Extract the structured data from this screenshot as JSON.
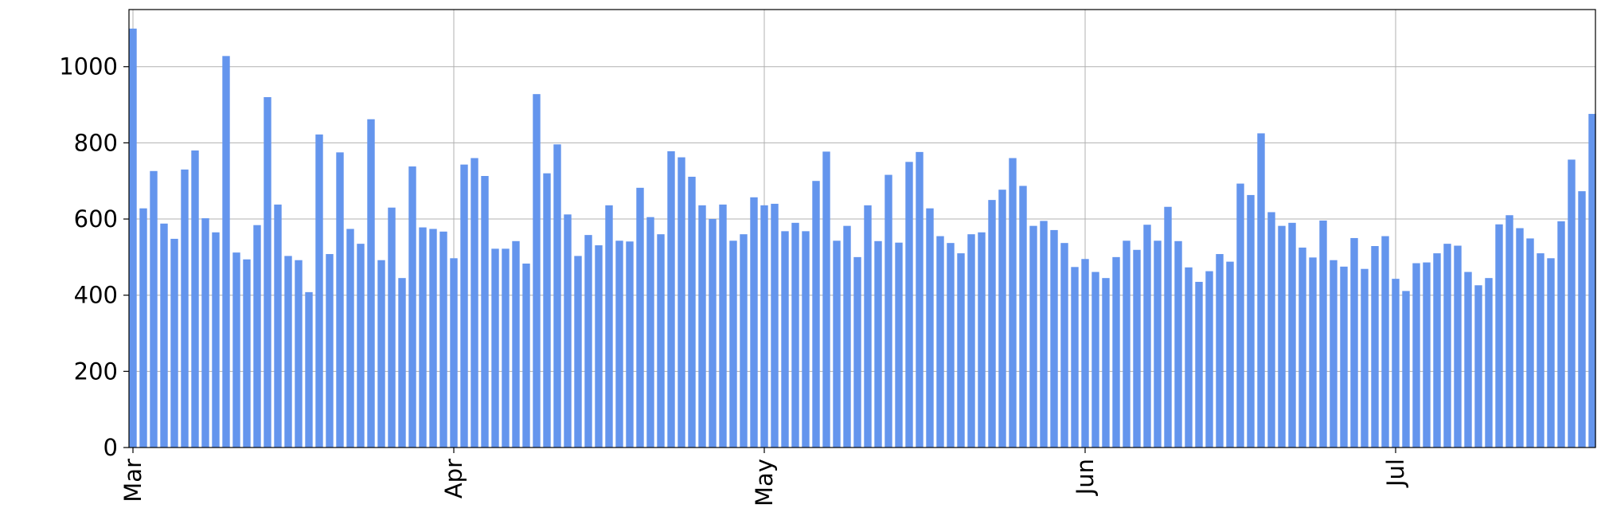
{
  "chart_data": {
    "type": "bar",
    "title": "",
    "xlabel": "",
    "ylabel": "",
    "x_start": "2016-03-01",
    "x_end": "2016-07-21",
    "x_ticks": [
      "Mar",
      "Apr",
      "May",
      "Jun",
      "Jul"
    ],
    "y_ticks": [
      0,
      200,
      400,
      600,
      800,
      1000
    ],
    "ylim": [
      0,
      1150
    ],
    "grid": true,
    "legend": "none",
    "bar_color": "#6495ED",
    "values": [
      1100,
      628,
      726,
      588,
      548,
      730,
      780,
      602,
      565,
      1028,
      512,
      494,
      584,
      920,
      638,
      503,
      492,
      408,
      822,
      508,
      775,
      574,
      535,
      862,
      492,
      630,
      445,
      738,
      578,
      574,
      567,
      497,
      743,
      760,
      713,
      522,
      522,
      542,
      483,
      928,
      720,
      796,
      612,
      503,
      558,
      531,
      636,
      543,
      541,
      682,
      605,
      560,
      778,
      762,
      711,
      636,
      600,
      638,
      543,
      560,
      657,
      636,
      640,
      568,
      590,
      568,
      700,
      777,
      543,
      582,
      500,
      636,
      542,
      716,
      538,
      750,
      776,
      628,
      555,
      537,
      510,
      560,
      565,
      650,
      677,
      760,
      687,
      582,
      595,
      571,
      537,
      474,
      495,
      461,
      445,
      500,
      543,
      519,
      585,
      543,
      632,
      542,
      473,
      435,
      463,
      508,
      488,
      693,
      663,
      825,
      618,
      582,
      590,
      525,
      499,
      596,
      492,
      475,
      550,
      469,
      529,
      555,
      443,
      411,
      484,
      486,
      510,
      535,
      530,
      461,
      426,
      445,
      586,
      610,
      576,
      549,
      510,
      497,
      594,
      756,
      673,
      876
    ]
  }
}
